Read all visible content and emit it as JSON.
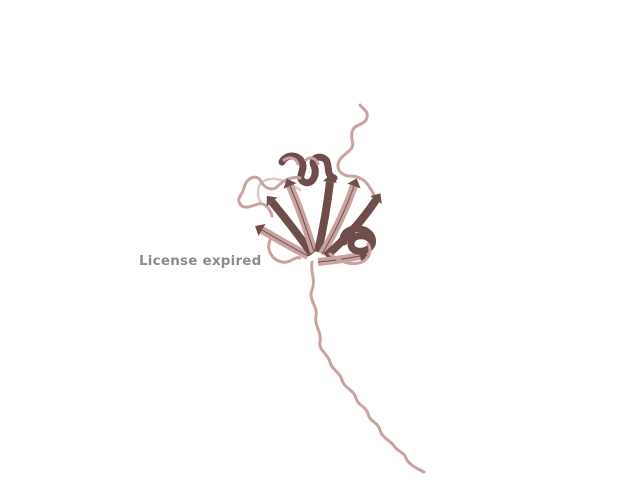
{
  "viewer": {
    "background_color": "#ffffff",
    "structure_color": "#c9a3a0",
    "structure_shadow_color": "#6e4d4b",
    "representation": "cartoon"
  },
  "watermark": {
    "text": "License expired",
    "color": "#8c8c8c"
  }
}
